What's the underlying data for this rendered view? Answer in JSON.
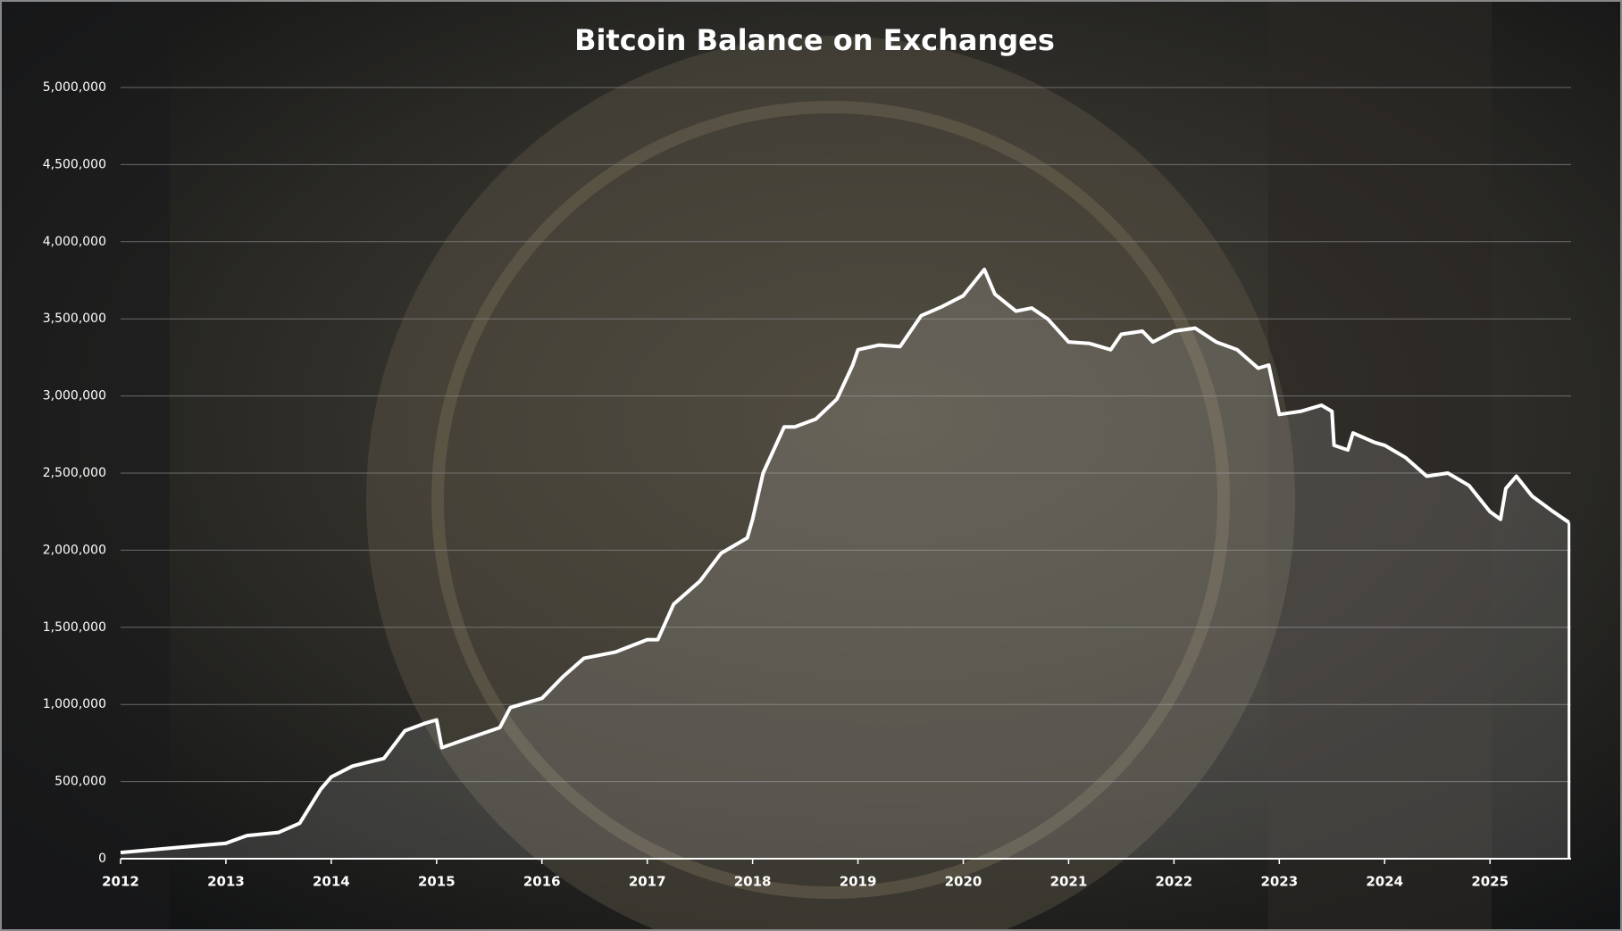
{
  "chart_data": {
    "type": "line",
    "title": "Bitcoin Balance on Exchanges",
    "x": [
      2012.0,
      2012.5,
      2013.0,
      2013.2,
      2013.5,
      2013.7,
      2013.9,
      2014.0,
      2014.2,
      2014.5,
      2014.7,
      2014.9,
      2015.0,
      2015.05,
      2015.3,
      2015.6,
      2015.7,
      2016.0,
      2016.2,
      2016.4,
      2016.7,
      2017.0,
      2017.1,
      2017.25,
      2017.5,
      2017.7,
      2017.95,
      2018.0,
      2018.1,
      2018.3,
      2018.4,
      2018.6,
      2018.8,
      2018.95,
      2019.0,
      2019.2,
      2019.4,
      2019.6,
      2019.8,
      2020.0,
      2020.2,
      2020.3,
      2020.5,
      2020.65,
      2020.8,
      2021.0,
      2021.2,
      2021.4,
      2021.5,
      2021.7,
      2021.8,
      2022.0,
      2022.2,
      2022.4,
      2022.6,
      2022.8,
      2022.9,
      2023.0,
      2023.2,
      2023.4,
      2023.5,
      2023.52,
      2023.65,
      2023.7,
      2023.9,
      2024.0,
      2024.2,
      2024.4,
      2024.6,
      2024.8,
      2025.0,
      2025.1,
      2025.15,
      2025.25,
      2025.4,
      2025.6,
      2025.75
    ],
    "values": [
      40000,
      70000,
      100000,
      150000,
      170000,
      230000,
      450000,
      530000,
      600000,
      650000,
      830000,
      880000,
      900000,
      720000,
      780000,
      850000,
      980000,
      1040000,
      1180000,
      1300000,
      1340000,
      1420000,
      1420000,
      1650000,
      1800000,
      1980000,
      2080000,
      2200000,
      2500000,
      2800000,
      2800000,
      2850000,
      2980000,
      3200000,
      3300000,
      3330000,
      3320000,
      3520000,
      3580000,
      3650000,
      3820000,
      3660000,
      3550000,
      3570000,
      3500000,
      3350000,
      3340000,
      3300000,
      3400000,
      3420000,
      3350000,
      3420000,
      3440000,
      3350000,
      3300000,
      3180000,
      3200000,
      2880000,
      2900000,
      2940000,
      2900000,
      2680000,
      2650000,
      2760000,
      2700000,
      2680000,
      2600000,
      2480000,
      2500000,
      2420000,
      2250000,
      2200000,
      2400000,
      2480000,
      2350000,
      2250000,
      2180000
    ],
    "color": "#ffffff",
    "xlim": [
      2012,
      2025.77
    ],
    "xticks": [
      2012,
      2013,
      2014,
      2015,
      2016,
      2017,
      2018,
      2019,
      2020,
      2021,
      2022,
      2023,
      2024,
      2025
    ],
    "ylim": [
      0,
      5000000
    ],
    "yticks": [
      0,
      {
        "value": 500000,
        "label": "500,000"
      },
      {
        "value": 1000000,
        "label": "1,000,000"
      },
      {
        "value": 1500000,
        "label": "1,500,000"
      },
      {
        "value": 2000000,
        "label": "2,000,000"
      },
      {
        "value": 2500000,
        "label": "2,500,000"
      },
      {
        "value": 3000000,
        "label": "3,000,000"
      },
      {
        "value": 3500000,
        "label": "3,500,000"
      },
      {
        "value": 4000000,
        "label": "4,000,000"
      },
      {
        "value": 4500000,
        "label": "4,500,000"
      },
      {
        "value": 5000000,
        "label": "5,000,000"
      }
    ],
    "grid": true
  }
}
